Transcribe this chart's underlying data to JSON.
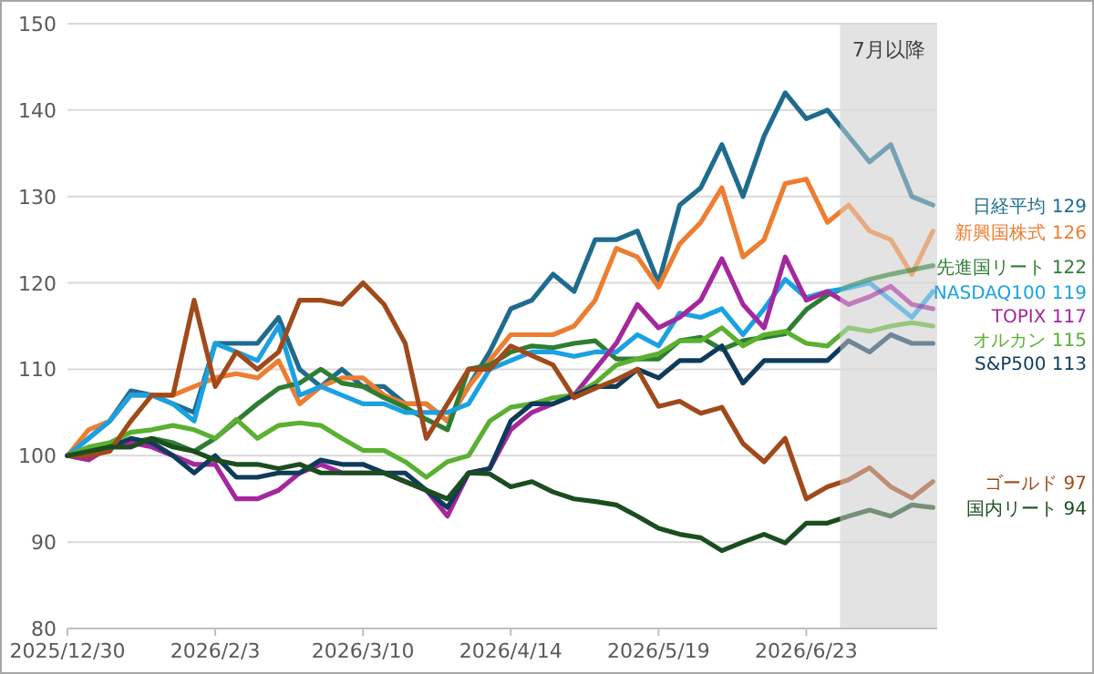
{
  "chart_data": {
    "type": "line",
    "x": [
      "2025-12-30",
      "2026-01-04",
      "2026-01-09",
      "2026-01-14",
      "2026-01-19",
      "2026-01-24",
      "2026-01-29",
      "2026-02-03",
      "2026-02-08",
      "2026-02-13",
      "2026-02-18",
      "2026-02-23",
      "2026-02-28",
      "2026-03-05",
      "2026-03-10",
      "2026-03-15",
      "2026-03-20",
      "2026-03-25",
      "2026-03-30",
      "2026-04-04",
      "2026-04-09",
      "2026-04-14",
      "2026-04-19",
      "2026-04-24",
      "2026-04-29",
      "2026-05-04",
      "2026-05-09",
      "2026-05-14",
      "2026-05-19",
      "2026-05-24",
      "2026-05-29",
      "2026-06-03",
      "2026-06-08",
      "2026-06-13",
      "2026-06-18",
      "2026-06-23",
      "2026-06-28",
      "2026-07-03",
      "2026-07-08",
      "2026-07-13",
      "2026-07-18",
      "2026-07-23"
    ],
    "series": [
      {
        "name": "日経平均",
        "color": "#1f6b8e",
        "values": [
          100,
          102,
          104,
          107.5,
          107,
          106,
          105,
          113,
          113,
          113,
          116,
          110,
          108,
          110,
          108,
          108,
          106,
          106,
          104,
          108,
          112,
          117,
          118,
          121,
          119,
          125,
          125,
          126,
          120,
          129,
          131,
          136,
          130,
          137,
          142,
          139,
          140,
          137,
          134,
          136,
          130,
          129
        ],
        "value_labels": [
          null,
          null,
          null,
          null,
          null,
          null,
          null,
          null,
          null,
          null,
          null,
          null,
          null,
          null,
          null,
          null,
          null,
          null,
          null,
          null,
          null,
          null,
          null,
          null,
          null,
          null,
          null,
          null,
          null,
          null,
          null,
          null,
          null,
          null,
          null,
          null,
          null,
          null,
          null,
          null,
          null,
          "129"
        ]
      },
      {
        "name": "新興国株式",
        "color": "#ed7d31",
        "values": [
          100,
          103,
          104,
          107,
          107,
          107,
          108,
          109,
          109.5,
          109,
          111,
          106,
          108,
          109,
          109,
          107,
          106,
          106,
          104,
          108,
          111,
          114,
          114,
          114,
          115,
          118,
          124,
          123,
          119.5,
          124.5,
          127,
          131,
          123,
          125,
          131.5,
          132,
          127,
          129,
          126,
          125,
          121,
          126
        ],
        "value_labels": [
          null,
          null,
          null,
          null,
          null,
          null,
          null,
          null,
          null,
          null,
          null,
          null,
          null,
          null,
          null,
          null,
          null,
          null,
          null,
          null,
          null,
          null,
          null,
          null,
          null,
          null,
          null,
          null,
          null,
          null,
          null,
          null,
          null,
          null,
          null,
          null,
          null,
          null,
          null,
          null,
          null,
          "126"
        ]
      },
      {
        "name": "先進国リート",
        "color": "#2e7d32",
        "values": [
          100,
          100.5,
          101,
          101.5,
          102,
          101.5,
          100.5,
          102,
          104,
          106,
          107.8,
          108.4,
          110,
          108.4,
          108,
          106.7,
          105.6,
          104.2,
          103,
          110,
          110.5,
          112,
          112.7,
          112.5,
          113,
          113.3,
          111.2,
          111.2,
          111.2,
          113.3,
          113.7,
          112.3,
          113.3,
          113.7,
          114.1,
          116.9,
          118.6,
          119.6,
          120.4,
          121,
          121.5,
          122
        ],
        "value_labels": [
          null,
          null,
          null,
          null,
          null,
          null,
          null,
          null,
          null,
          null,
          null,
          null,
          null,
          null,
          null,
          null,
          null,
          null,
          null,
          null,
          null,
          null,
          null,
          null,
          null,
          null,
          null,
          null,
          null,
          null,
          null,
          null,
          null,
          null,
          null,
          null,
          null,
          null,
          null,
          null,
          null,
          "122"
        ]
      },
      {
        "name": "NASDAQ100",
        "color": "#1ba1e2",
        "values": [
          100,
          102,
          104,
          107,
          107,
          106,
          104,
          113,
          112,
          111,
          115,
          107,
          108,
          107,
          106,
          106,
          105,
          105,
          105,
          106,
          110,
          111,
          112,
          112,
          111.5,
          112,
          112,
          114,
          112.7,
          116.5,
          116,
          117,
          114,
          117,
          120.4,
          118.3,
          119,
          119.4,
          120,
          118,
          116,
          119
        ],
        "value_labels": [
          null,
          null,
          null,
          null,
          null,
          null,
          null,
          null,
          null,
          null,
          null,
          null,
          null,
          null,
          null,
          null,
          null,
          null,
          null,
          null,
          null,
          null,
          null,
          null,
          null,
          null,
          null,
          null,
          null,
          null,
          null,
          null,
          null,
          null,
          null,
          null,
          null,
          null,
          null,
          null,
          null,
          "119"
        ]
      },
      {
        "name": "TOPIX",
        "color": "#a5279d",
        "values": [
          100,
          99.5,
          101,
          101.5,
          101,
          100,
          99,
          99,
          95,
          95,
          96,
          98,
          99,
          98,
          98,
          98,
          97,
          96,
          93,
          98,
          98.5,
          103,
          105,
          106,
          107,
          110,
          113,
          117.5,
          114.8,
          116,
          118,
          122.8,
          117.5,
          114.8,
          123,
          118,
          119,
          117.5,
          118.4,
          119.6,
          117.5,
          117
        ],
        "value_labels": [
          null,
          null,
          null,
          null,
          null,
          null,
          null,
          null,
          null,
          null,
          null,
          null,
          null,
          null,
          null,
          null,
          null,
          null,
          null,
          null,
          null,
          null,
          null,
          null,
          null,
          null,
          null,
          null,
          null,
          null,
          null,
          null,
          null,
          null,
          null,
          null,
          null,
          null,
          null,
          null,
          null,
          "117"
        ]
      },
      {
        "name": "オルカン",
        "color": "#5ab030",
        "values": [
          100,
          101,
          101.5,
          102.7,
          103,
          103.5,
          103,
          102,
          104.2,
          102,
          103.5,
          103.8,
          103.5,
          102,
          100.6,
          100.6,
          99.3,
          97.5,
          99.3,
          100,
          104,
          105.6,
          106,
          106.7,
          107,
          108.4,
          110.5,
          111.2,
          111.8,
          113.3,
          113.3,
          114.8,
          112.7,
          114,
          114.4,
          113,
          112.7,
          114.8,
          114.4,
          115,
          115.4,
          115
        ],
        "value_labels": [
          null,
          null,
          null,
          null,
          null,
          null,
          null,
          null,
          null,
          null,
          null,
          null,
          null,
          null,
          null,
          null,
          null,
          null,
          null,
          null,
          null,
          null,
          null,
          null,
          null,
          null,
          null,
          null,
          null,
          null,
          null,
          null,
          null,
          null,
          null,
          null,
          null,
          null,
          null,
          null,
          null,
          "115"
        ]
      },
      {
        "name": "S&P500",
        "color": "#0e3b5b",
        "values": [
          100,
          100,
          101,
          102,
          101.5,
          100,
          98,
          100,
          97.5,
          97.5,
          98,
          98,
          99.5,
          99,
          99,
          98,
          98,
          96,
          94,
          98,
          98.5,
          104,
          106,
          106,
          107,
          108,
          108,
          110,
          109,
          111,
          111,
          112.7,
          108.4,
          111,
          111,
          111,
          111,
          113.3,
          112,
          114,
          113,
          113
        ],
        "value_labels": [
          null,
          null,
          null,
          null,
          null,
          null,
          null,
          null,
          null,
          null,
          null,
          null,
          null,
          null,
          null,
          null,
          null,
          null,
          null,
          null,
          null,
          null,
          null,
          null,
          null,
          null,
          null,
          null,
          null,
          null,
          null,
          null,
          null,
          null,
          null,
          null,
          null,
          null,
          null,
          null,
          null,
          "113"
        ]
      },
      {
        "name": "ゴールド",
        "color": "#a0491a",
        "values": [
          100,
          100,
          100.5,
          104,
          107,
          107,
          118,
          108,
          112,
          110,
          112,
          118,
          118,
          117.5,
          120,
          117.5,
          113,
          102,
          106,
          110,
          110,
          112.7,
          111.6,
          110.5,
          106.7,
          107.8,
          108.8,
          110,
          105.7,
          106.3,
          104.9,
          105.6,
          101.4,
          99.3,
          102,
          95,
          96.4,
          97.2,
          98.6,
          96.4,
          95.1,
          97
        ],
        "value_labels": [
          null,
          null,
          null,
          null,
          null,
          null,
          null,
          null,
          null,
          null,
          null,
          null,
          null,
          null,
          null,
          null,
          null,
          null,
          null,
          null,
          null,
          null,
          null,
          null,
          null,
          null,
          null,
          null,
          null,
          null,
          null,
          null,
          null,
          null,
          null,
          null,
          null,
          null,
          null,
          null,
          null,
          "97"
        ]
      },
      {
        "name": "国内リート",
        "color": "#1b4d1f",
        "values": [
          100,
          100.5,
          101,
          101,
          102,
          101,
          100.5,
          99.5,
          99,
          99,
          98.5,
          99,
          98,
          98,
          98,
          98,
          97,
          96,
          95,
          98,
          97.9,
          96.4,
          97,
          95.8,
          95,
          94.7,
          94.3,
          93,
          91.6,
          90.9,
          90.5,
          89,
          90,
          90.9,
          89.9,
          92.2,
          92.2,
          93,
          93.7,
          93,
          94.3,
          94
        ],
        "value_labels": [
          null,
          null,
          null,
          null,
          null,
          null,
          null,
          null,
          null,
          null,
          null,
          null,
          null,
          null,
          null,
          null,
          null,
          null,
          null,
          null,
          null,
          null,
          null,
          null,
          null,
          null,
          null,
          null,
          null,
          null,
          null,
          null,
          null,
          null,
          null,
          null,
          null,
          null,
          null,
          null,
          null,
          "94"
        ]
      }
    ],
    "xlim": [
      "2025-12-30",
      "2026-07-24"
    ],
    "xticks": [
      {
        "value": "2025-12-30",
        "label": "2025/12/30"
      },
      {
        "value": "2026-02-03",
        "label": "2026/2/3"
      },
      {
        "value": "2026-03-10",
        "label": "2026/3/10"
      },
      {
        "value": "2026-04-14",
        "label": "2026/4/14"
      },
      {
        "value": "2026-05-19",
        "label": "2026/5/19"
      },
      {
        "value": "2026-06-23",
        "label": "2026/6/23"
      }
    ],
    "ylim": [
      80,
      150
    ],
    "yticks": [
      80,
      90,
      100,
      110,
      120,
      130,
      140,
      150
    ],
    "bands": [
      {
        "axis": "x",
        "from": "2026-07-01",
        "to": "2026-07-24",
        "label": "7月以降",
        "color": "#e3e3e3"
      }
    ],
    "grid": "y"
  }
}
